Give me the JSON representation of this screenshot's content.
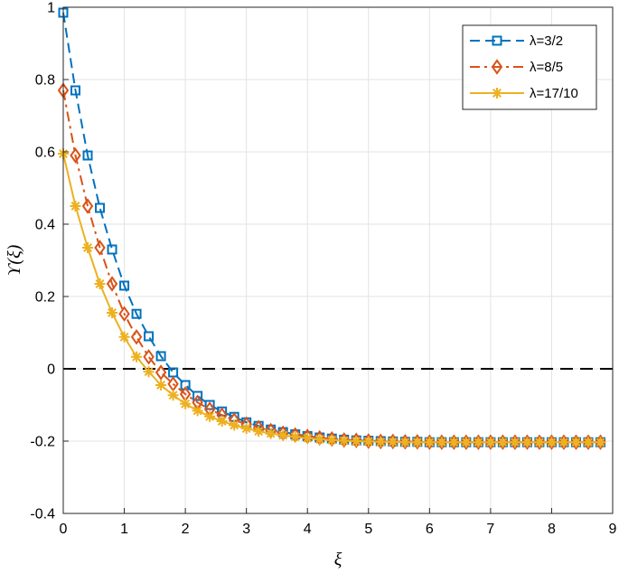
{
  "chart_data": {
    "type": "line",
    "xlabel": "ξ",
    "ylabel": "ϒ(ξ)",
    "xlim": [
      0,
      9
    ],
    "ylim": [
      -0.4,
      1
    ],
    "xticks": [
      "0",
      "1",
      "2",
      "3",
      "4",
      "5",
      "6",
      "7",
      "8",
      "9"
    ],
    "yticks": [
      "-0.4",
      "-0.2",
      "0",
      "0.2",
      "0.4",
      "0.6",
      "0.8",
      "1"
    ],
    "grid": true,
    "legend_position": "top-right",
    "reference_line": {
      "y": 0,
      "style": "dashed",
      "color": "#000000"
    },
    "series": [
      {
        "name": "λ=3/2",
        "color": "#0072BD",
        "line": "dashed",
        "marker": "square",
        "x": [
          0,
          0.2,
          0.4,
          0.6,
          0.8,
          1.0,
          1.2,
          1.4,
          1.6,
          1.8,
          2.0,
          2.2,
          2.4,
          2.6,
          2.8,
          3.0,
          3.2,
          3.4,
          3.6,
          3.8,
          4.0,
          4.2,
          4.4,
          4.6,
          4.8,
          5.0,
          5.2,
          5.4,
          5.6,
          5.8,
          6.0,
          6.2,
          6.4,
          6.6,
          6.8,
          7.0,
          7.2,
          7.4,
          7.6,
          7.8,
          8.0,
          8.2,
          8.4,
          8.6,
          8.8
        ],
        "y": [
          0.985,
          0.77,
          0.59,
          0.445,
          0.33,
          0.23,
          0.152,
          0.09,
          0.035,
          -0.01,
          -0.045,
          -0.075,
          -0.1,
          -0.118,
          -0.133,
          -0.148,
          -0.158,
          -0.168,
          -0.175,
          -0.181,
          -0.186,
          -0.19,
          -0.193,
          -0.196,
          -0.198,
          -0.199,
          -0.2,
          -0.201,
          -0.202,
          -0.202,
          -0.203,
          -0.203,
          -0.203,
          -0.203,
          -0.203,
          -0.203,
          -0.203,
          -0.203,
          -0.203,
          -0.203,
          -0.203,
          -0.203,
          -0.203,
          -0.203,
          -0.203
        ]
      },
      {
        "name": "λ=8/5",
        "color": "#D95319",
        "line": "dashdot",
        "marker": "diamond",
        "x": [
          0,
          0.2,
          0.4,
          0.6,
          0.8,
          1.0,
          1.2,
          1.4,
          1.6,
          1.8,
          2.0,
          2.2,
          2.4,
          2.6,
          2.8,
          3.0,
          3.2,
          3.4,
          3.6,
          3.8,
          4.0,
          4.2,
          4.4,
          4.6,
          4.8,
          5.0,
          5.2,
          5.4,
          5.6,
          5.8,
          6.0,
          6.2,
          6.4,
          6.6,
          6.8,
          7.0,
          7.2,
          7.4,
          7.6,
          7.8,
          8.0,
          8.2,
          8.4,
          8.6,
          8.8
        ],
        "y": [
          0.77,
          0.59,
          0.45,
          0.335,
          0.235,
          0.152,
          0.088,
          0.033,
          -0.01,
          -0.042,
          -0.07,
          -0.093,
          -0.112,
          -0.128,
          -0.142,
          -0.153,
          -0.163,
          -0.171,
          -0.178,
          -0.183,
          -0.187,
          -0.191,
          -0.194,
          -0.197,
          -0.198,
          -0.2,
          -0.201,
          -0.201,
          -0.202,
          -0.202,
          -0.203,
          -0.203,
          -0.203,
          -0.203,
          -0.203,
          -0.203,
          -0.203,
          -0.203,
          -0.203,
          -0.203,
          -0.203,
          -0.203,
          -0.203,
          -0.203,
          -0.203
        ]
      },
      {
        "name": "λ=17/10",
        "color": "#EDB120",
        "line": "solid",
        "marker": "asterisk",
        "x": [
          0,
          0.2,
          0.4,
          0.6,
          0.8,
          1.0,
          1.2,
          1.4,
          1.6,
          1.8,
          2.0,
          2.2,
          2.4,
          2.6,
          2.8,
          3.0,
          3.2,
          3.4,
          3.6,
          3.8,
          4.0,
          4.2,
          4.4,
          4.6,
          4.8,
          5.0,
          5.2,
          5.4,
          5.6,
          5.8,
          6.0,
          6.2,
          6.4,
          6.6,
          6.8,
          7.0,
          7.2,
          7.4,
          7.6,
          7.8,
          8.0,
          8.2,
          8.4,
          8.6,
          8.8
        ],
        "y": [
          0.595,
          0.45,
          0.335,
          0.235,
          0.155,
          0.088,
          0.033,
          -0.008,
          -0.045,
          -0.073,
          -0.097,
          -0.116,
          -0.132,
          -0.145,
          -0.156,
          -0.165,
          -0.173,
          -0.179,
          -0.184,
          -0.188,
          -0.192,
          -0.195,
          -0.197,
          -0.199,
          -0.2,
          -0.201,
          -0.202,
          -0.202,
          -0.203,
          -0.203,
          -0.203,
          -0.203,
          -0.203,
          -0.203,
          -0.203,
          -0.203,
          -0.203,
          -0.203,
          -0.203,
          -0.203,
          -0.203,
          -0.203,
          -0.203,
          -0.203,
          -0.203
        ]
      }
    ]
  }
}
